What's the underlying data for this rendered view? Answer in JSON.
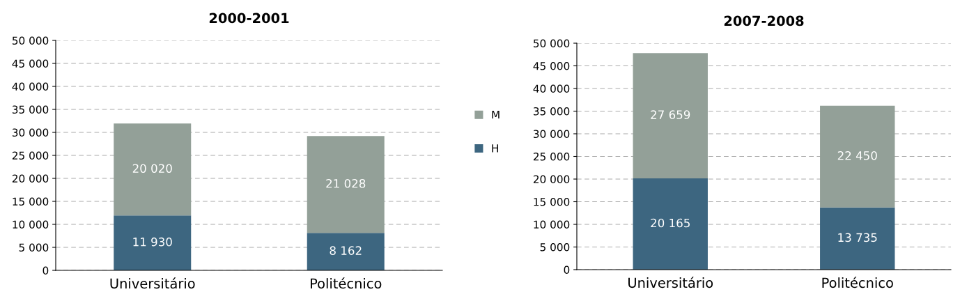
{
  "chart_data": [
    {
      "type": "bar",
      "title": "2000-2001",
      "stacked": true,
      "categories": [
        "Universitário",
        "Politécnico"
      ],
      "series": [
        {
          "name": "H",
          "color": "#3d6680",
          "values": [
            11930,
            8162
          ],
          "value_labels": [
            "11 930",
            "8 162"
          ]
        },
        {
          "name": "M",
          "color": "#93a098",
          "values": [
            20020,
            21028
          ],
          "value_labels": [
            "20 020",
            "21 028"
          ]
        }
      ],
      "ylim": [
        0,
        50000
      ],
      "yticks": [
        0,
        {
          "value": 5000,
          "label": "5 000"
        },
        {
          "value": 10000,
          "label": "10 000"
        },
        {
          "value": 15000,
          "label": "15 000"
        },
        {
          "value": 20000,
          "label": "20 000"
        },
        {
          "value": 25000,
          "label": "25 000"
        },
        {
          "value": 30000,
          "label": "30 000"
        },
        {
          "value": 35000,
          "label": "35 000"
        },
        {
          "value": 40000,
          "label": "40 000"
        },
        {
          "value": 45000,
          "label": "45 000"
        },
        {
          "value": 50000,
          "label": "50 000"
        }
      ],
      "grid": "y",
      "legend": "right"
    },
    {
      "type": "bar",
      "title": "2007-2008",
      "stacked": true,
      "categories": [
        "Universitário",
        "Politécnico"
      ],
      "series": [
        {
          "color": "#3d6680",
          "values": [
            20165,
            13735
          ],
          "value_labels": [
            "20 165",
            "13 735"
          ]
        },
        {
          "color": "#93a098",
          "values": [
            27659,
            22450
          ],
          "value_labels": [
            "27 659",
            "22 450"
          ]
        }
      ],
      "ylim": [
        0,
        50000
      ],
      "yticks": [
        0,
        {
          "value": 5000,
          "label": "5 000"
        },
        {
          "value": 10000,
          "label": "10 000"
        },
        {
          "value": 15000,
          "label": "15 000"
        },
        {
          "value": 20000,
          "label": "20 000"
        },
        {
          "value": 25000,
          "label": "25 000"
        },
        {
          "value": 30000,
          "label": "30 000"
        },
        {
          "value": 35000,
          "label": "35 000"
        },
        {
          "value": 40000,
          "label": "40 000"
        },
        {
          "value": 45000,
          "label": "45 000"
        },
        {
          "value": 50000,
          "label": "50 000"
        }
      ],
      "grid": "y"
    }
  ]
}
